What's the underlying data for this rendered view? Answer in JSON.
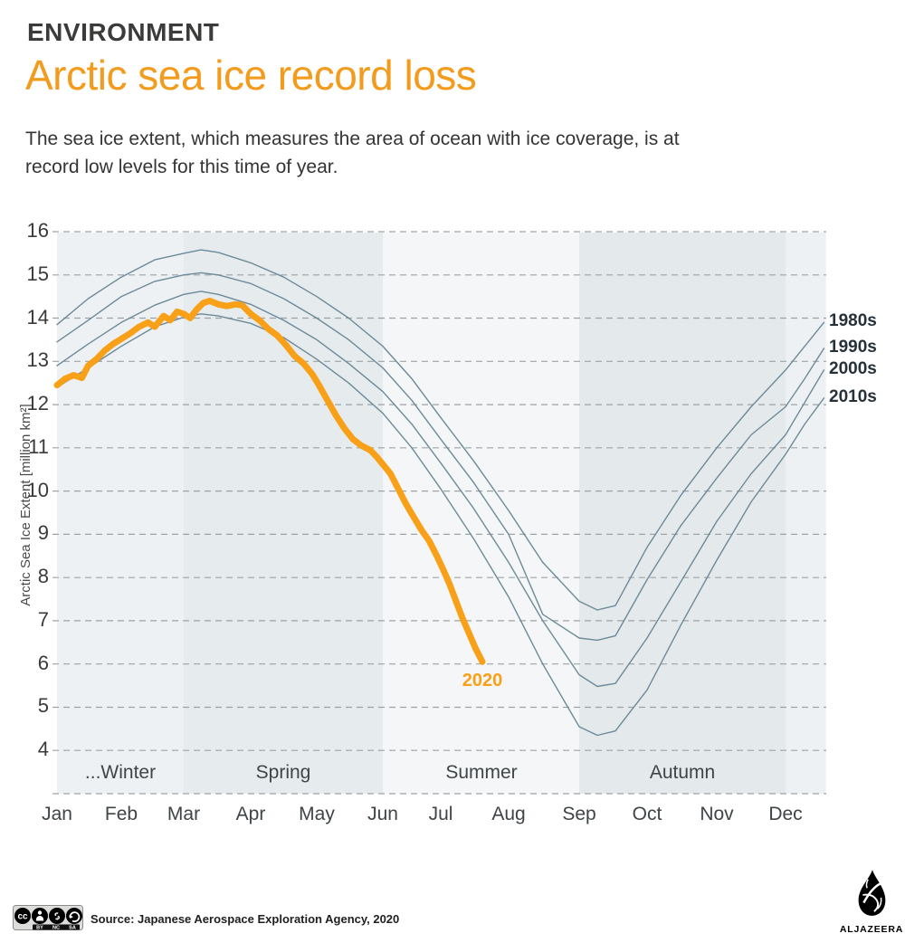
{
  "header": {
    "kicker": "ENVIRONMENT",
    "title": "Arctic sea ice record loss",
    "subtitle_line1": "The sea ice extent, which measures the area of ocean with ice coverage, is at",
    "subtitle_line2": "record low levels for this time of year.",
    "accent_color": "#f39b1c",
    "kicker_color": "#3b3b3a"
  },
  "chart_data": {
    "type": "line",
    "title": "Arctic sea ice record loss",
    "ylabel": "Arctic Sea Ice Extent [million km²]",
    "xlabel": "",
    "ylim": [
      3,
      16
    ],
    "y_ticks": [
      16,
      15,
      14,
      13,
      12,
      11,
      10,
      9,
      8,
      7,
      6,
      5,
      4
    ],
    "grid_color": "#9ca3a7",
    "legend_position": "right-edge-labels",
    "months": [
      {
        "label": "Jan",
        "day": 0
      },
      {
        "label": "Feb",
        "day": 31
      },
      {
        "label": "Mar",
        "day": 59
      },
      {
        "label": "Apr",
        "day": 90
      },
      {
        "label": "May",
        "day": 120
      },
      {
        "label": "Jun",
        "day": 151
      },
      {
        "label": "Jul",
        "day": 181
      },
      {
        "label": "Aug",
        "day": 212
      },
      {
        "label": "Sep",
        "day": 243
      },
      {
        "label": "Oct",
        "day": 273
      },
      {
        "label": "Nov",
        "day": 304
      },
      {
        "label": "Dec",
        "day": 334
      }
    ],
    "seasons": [
      {
        "label": "...Winter",
        "start_day": 0,
        "end_day": 59,
        "band_color": "#eef1f3"
      },
      {
        "label": "Spring",
        "start_day": 59,
        "end_day": 151,
        "band_color": "#e6ebed"
      },
      {
        "label": "Summer",
        "start_day": 151,
        "end_day": 243,
        "band_color": "#f4f6f7"
      },
      {
        "label": "Autumn",
        "start_day": 243,
        "end_day": 334,
        "band_color": "#e4e9eb"
      },
      {
        "label": "",
        "start_day": 334,
        "end_day": 353,
        "band_color": "#eef1f3"
      }
    ],
    "series": [
      {
        "name": "1980s",
        "color": "#6d8a99",
        "width": 1.4,
        "label_position": "right",
        "days": [
          0,
          15,
          31,
          46,
          59,
          67,
          75,
          90,
          105,
          120,
          135,
          151,
          166,
          181,
          196,
          212,
          227,
          243,
          251,
          259,
          273,
          288,
          304,
          319,
          334,
          343,
          352
        ],
        "values": [
          13.85,
          14.45,
          14.95,
          15.35,
          15.5,
          15.58,
          15.52,
          15.28,
          14.95,
          14.5,
          14.0,
          13.35,
          12.6,
          11.7,
          10.7,
          9.55,
          8.35,
          7.45,
          7.25,
          7.35,
          8.7,
          9.9,
          11.0,
          11.95,
          12.8,
          13.35,
          13.9
        ]
      },
      {
        "name": "1990s",
        "color": "#6d8a99",
        "width": 1.4,
        "label_position": "right",
        "days": [
          0,
          15,
          31,
          46,
          59,
          67,
          75,
          90,
          105,
          120,
          135,
          151,
          166,
          181,
          196,
          212,
          227,
          243,
          251,
          259,
          273,
          288,
          304,
          319,
          334,
          343,
          352
        ],
        "values": [
          13.45,
          13.95,
          14.5,
          14.85,
          15.0,
          15.05,
          15.0,
          14.8,
          14.45,
          14.0,
          13.5,
          12.85,
          12.1,
          11.2,
          10.2,
          9.0,
          7.15,
          6.6,
          6.55,
          6.65,
          7.95,
          9.2,
          10.3,
          11.3,
          11.95,
          12.6,
          13.3
        ]
      },
      {
        "name": "2000s",
        "color": "#6d8a99",
        "width": 1.4,
        "label_position": "right",
        "days": [
          0,
          15,
          31,
          46,
          59,
          67,
          75,
          90,
          105,
          120,
          135,
          151,
          166,
          181,
          196,
          212,
          227,
          243,
          251,
          259,
          273,
          288,
          304,
          319,
          334,
          343,
          352
        ],
        "values": [
          12.9,
          13.4,
          13.9,
          14.3,
          14.55,
          14.62,
          14.55,
          14.32,
          13.95,
          13.5,
          12.95,
          12.3,
          11.55,
          10.65,
          9.6,
          8.35,
          7.0,
          5.75,
          5.48,
          5.55,
          6.6,
          7.9,
          9.3,
          10.4,
          11.3,
          12.05,
          12.8
        ]
      },
      {
        "name": "2010s",
        "color": "#6d8a99",
        "width": 1.4,
        "label_position": "right",
        "days": [
          0,
          15,
          31,
          46,
          59,
          67,
          75,
          90,
          105,
          120,
          135,
          151,
          166,
          181,
          196,
          212,
          227,
          243,
          251,
          259,
          273,
          288,
          304,
          319,
          334,
          343,
          352
        ],
        "values": [
          12.4,
          12.85,
          13.35,
          13.8,
          14.02,
          14.1,
          14.05,
          13.88,
          13.55,
          13.05,
          12.5,
          11.8,
          11.0,
          10.05,
          8.9,
          7.55,
          6.0,
          4.55,
          4.35,
          4.45,
          5.4,
          6.9,
          8.4,
          9.75,
          10.85,
          11.55,
          12.15
        ]
      },
      {
        "name": "2020",
        "color": "#f7a018",
        "width": 7,
        "label_position": "below-end",
        "days": [
          0,
          4,
          8,
          12,
          15,
          19,
          23,
          27,
          31,
          35,
          39,
          43,
          46,
          50,
          53,
          56,
          59,
          62,
          65,
          68,
          71,
          75,
          79,
          83,
          86,
          90,
          94,
          98,
          102,
          106,
          110,
          114,
          118,
          121,
          125,
          129,
          133,
          137,
          141,
          145,
          148,
          151,
          155,
          159,
          163,
          167,
          171,
          175,
          179,
          182,
          185,
          188,
          191,
          194,
          197,
          200
        ],
        "values": [
          12.45,
          12.6,
          12.68,
          12.62,
          12.9,
          13.05,
          13.25,
          13.4,
          13.52,
          13.65,
          13.8,
          13.9,
          13.8,
          14.05,
          13.95,
          14.15,
          14.1,
          14.0,
          14.2,
          14.35,
          14.4,
          14.32,
          14.28,
          14.32,
          14.3,
          14.1,
          13.95,
          13.75,
          13.6,
          13.38,
          13.12,
          12.95,
          12.7,
          12.45,
          12.1,
          11.75,
          11.45,
          11.2,
          11.05,
          10.95,
          10.8,
          10.62,
          10.4,
          10.05,
          9.7,
          9.4,
          9.1,
          8.85,
          8.5,
          8.2,
          7.85,
          7.45,
          7.05,
          6.7,
          6.35,
          6.05
        ]
      }
    ]
  },
  "footer": {
    "license_labels": [
      "BY",
      "NC",
      "SA"
    ],
    "source": "Source: Japanese Aerospace Exploration Agency, 2020",
    "logo_text": "ALJAZEERA"
  }
}
